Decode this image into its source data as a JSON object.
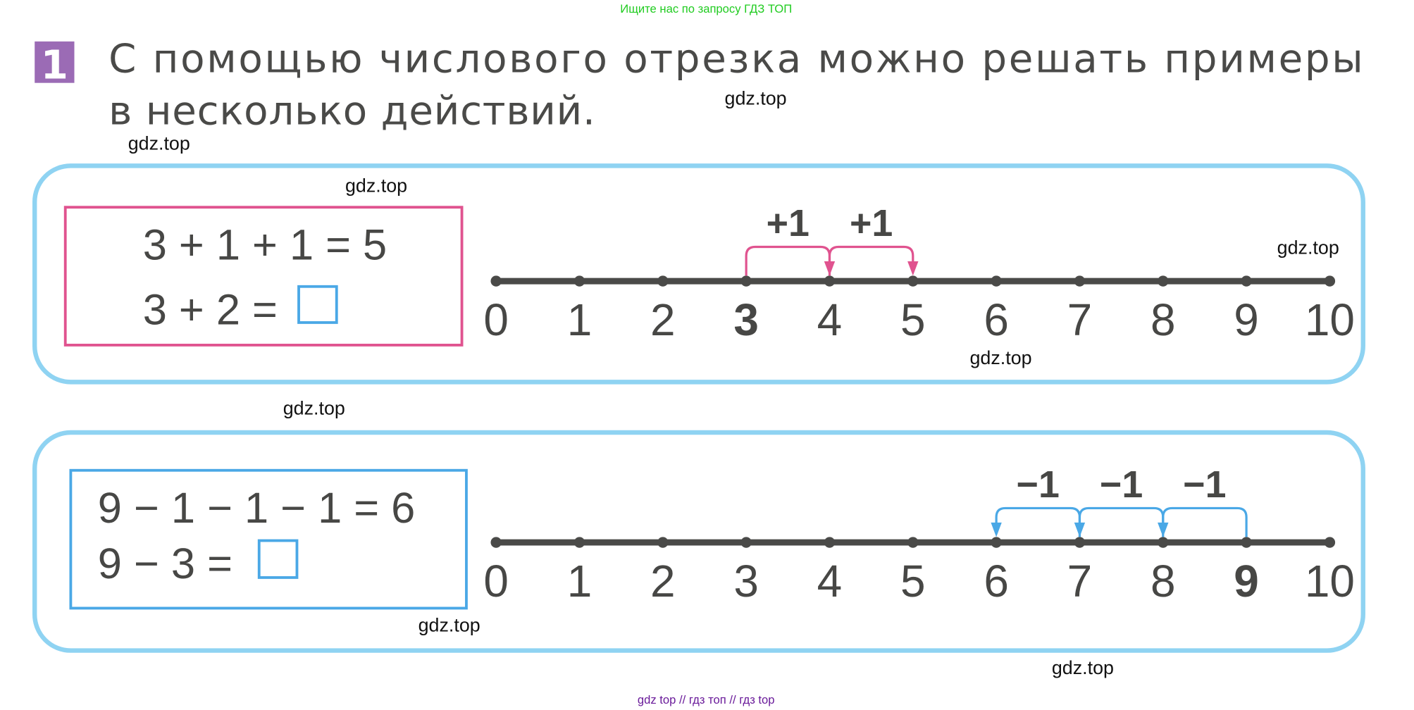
{
  "header_link": "Ищите нас по запросу ГДЗ ТОП",
  "task": {
    "number": "1",
    "line1": "С помощью числового отрезка можно решать примеры",
    "line2": "в несколько действий."
  },
  "watermarks": [
    "gdz.top",
    "gdz.top",
    "gdz.top",
    "gdz.top",
    "gdz.top",
    "gdz.top",
    "gdz.top",
    "gdz.top"
  ],
  "footer": "gdz top  //  гдз топ  //  гдз top",
  "colors": {
    "pink": "#e0538f",
    "blue": "#4aa8e6",
    "frame": "#8fd3f2",
    "badge": "#9b6bb5",
    "line": "#4a4a48",
    "green": "#22cc22",
    "footer": "#6a1b9a"
  },
  "examples": [
    {
      "equation1": "3 + 1 + 1 = 5",
      "equation2": "3 + 2 =",
      "answer_box": "empty",
      "box_color": "#e0538f",
      "start": 3,
      "jumps": [
        "+1",
        "+1"
      ],
      "ticks": [
        "0",
        "1",
        "2",
        "3",
        "4",
        "5",
        "6",
        "7",
        "8",
        "9",
        "10"
      ],
      "bold_tick": 3
    },
    {
      "equation1": "9 − 1 − 1 − 1 = 6",
      "equation2": "9 − 3 =",
      "answer_box": "empty",
      "box_color": "#4aa8e6",
      "start": 9,
      "jumps": [
        "−1",
        "−1",
        "−1"
      ],
      "ticks": [
        "0",
        "1",
        "2",
        "3",
        "4",
        "5",
        "6",
        "7",
        "8",
        "9",
        "10"
      ],
      "bold_tick": 9
    }
  ]
}
